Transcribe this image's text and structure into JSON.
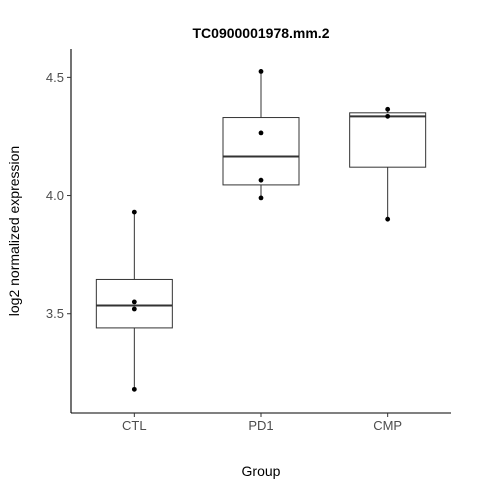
{
  "chart_data": {
    "type": "box",
    "title": "TC0900001978.mm.2",
    "xlabel": "Group",
    "ylabel": "log2 normalized expression",
    "ylim": [
      3.08,
      4.62
    ],
    "yticks": [
      3.5,
      4.0,
      4.5
    ],
    "ytick_labels": [
      "3.5",
      "4.0",
      "4.5"
    ],
    "grid": false,
    "categories": [
      "CTL",
      "PD1",
      "CMP"
    ],
    "boxes": [
      {
        "group": "CTL",
        "min": 3.18,
        "q1": 3.44,
        "median": 3.535,
        "q3": 3.645,
        "max": 3.93,
        "points": [
          3.18,
          3.52,
          3.55,
          3.93
        ]
      },
      {
        "group": "PD1",
        "min": 3.99,
        "q1": 4.045,
        "median": 4.165,
        "q3": 4.33,
        "max": 4.525,
        "points": [
          3.99,
          4.065,
          4.265,
          4.525
        ]
      },
      {
        "group": "CMP",
        "min": 3.9,
        "q1": 4.12,
        "median": 4.335,
        "q3": 4.35,
        "max": 4.365,
        "points": [
          3.9,
          4.335,
          4.365
        ]
      }
    ]
  }
}
